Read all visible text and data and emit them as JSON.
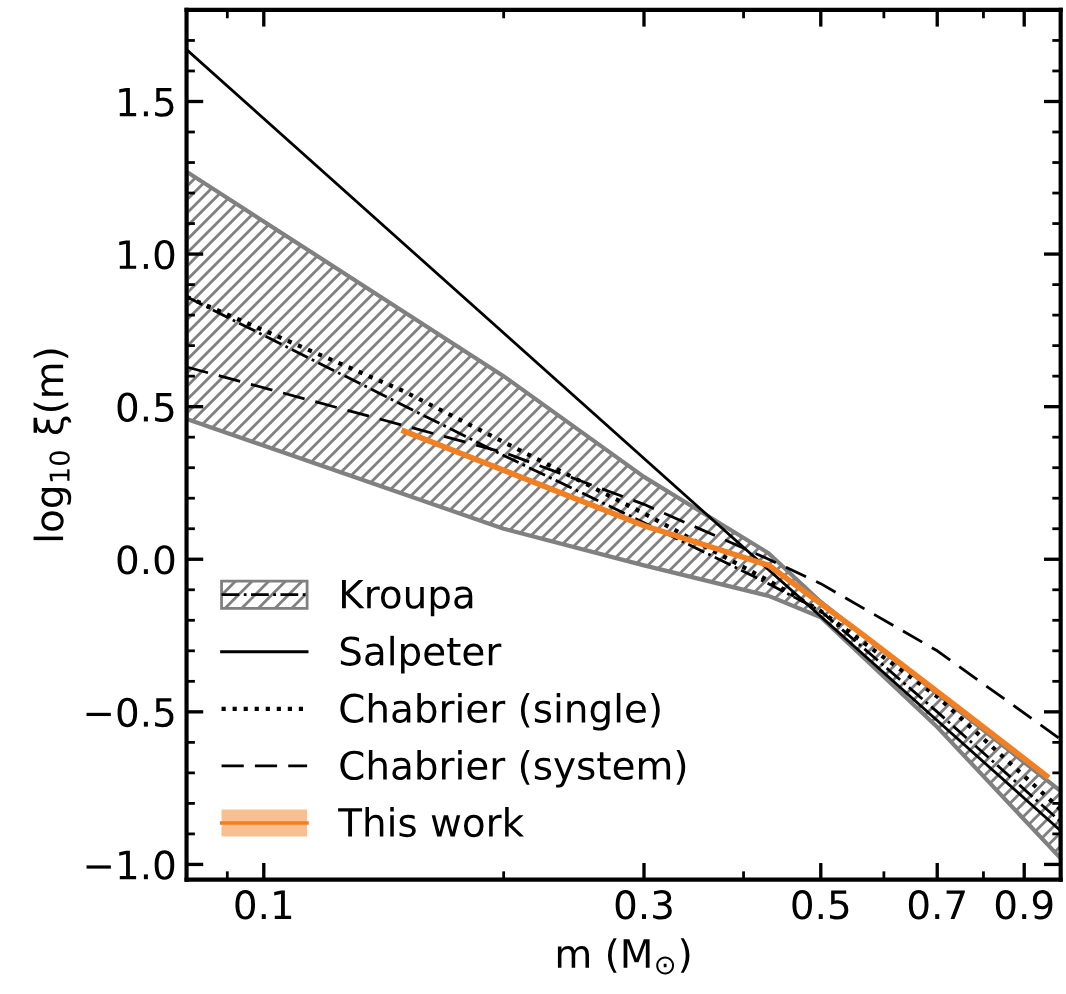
{
  "chart_data": {
    "type": "line",
    "xlabel": "m (M$_{⊙}$)",
    "ylabel": "log$_{10}$ ξ(m)",
    "log": "x",
    "xlim": [
      0.08,
      1.0
    ],
    "xticks": [
      0.1,
      0.3,
      0.5,
      0.7,
      0.9
    ],
    "ylim": [
      -1.05,
      1.8
    ],
    "yticks": [
      {
        "value": -1.0,
        "label": "−1.0"
      },
      {
        "value": -0.5,
        "label": "−0.5"
      },
      {
        "value": 0.0,
        "label": "0.0"
      },
      {
        "value": 0.5,
        "label": "0.5"
      },
      {
        "value": 1.0,
        "label": "1.0"
      },
      {
        "value": 1.5,
        "label": "1.5"
      }
    ],
    "grid": false,
    "legend": "bottom left",
    "series": [
      {
        "name": "Kroupa",
        "color": "#000000",
        "line_style": "dashdot",
        "x": [
          0.08,
          0.2,
          0.3,
          0.43,
          0.5,
          0.7,
          1.0
        ],
        "values": [
          0.86,
          0.34,
          0.12,
          -0.08,
          -0.17,
          -0.5,
          -0.86
        ],
        "lower": [
          0.46,
          0.1,
          -0.02,
          -0.12,
          -0.19,
          -0.55,
          -0.98
        ],
        "upper": [
          1.27,
          0.6,
          0.27,
          0.02,
          -0.14,
          -0.44,
          -0.76
        ]
      },
      {
        "name": "Salpeter",
        "color": "#000000",
        "line_style": "solid",
        "x": [
          0.08,
          1.0
        ],
        "values": [
          1.67,
          -0.89
        ]
      },
      {
        "name": "Chabrier (single)",
        "color": "#000000",
        "line_style": "dotted",
        "x": [
          0.08,
          0.15,
          0.3,
          0.43,
          0.5,
          0.7,
          1.0
        ],
        "values": [
          0.86,
          0.55,
          0.15,
          -0.07,
          -0.17,
          -0.45,
          -0.82
        ]
      },
      {
        "name": "Chabrier (system)",
        "color": "#000000",
        "line_style": "dashed",
        "x": [
          0.08,
          0.2,
          0.3,
          0.43,
          0.5,
          0.7,
          1.0
        ],
        "values": [
          0.63,
          0.35,
          0.18,
          0.0,
          -0.08,
          -0.3,
          -0.59
        ]
      },
      {
        "name": "This work",
        "color": "#f28022",
        "line_style": "solid",
        "x": [
          0.15,
          0.3,
          0.43,
          0.56,
          0.73,
          0.96
        ],
        "values": [
          0.42,
          0.11,
          -0.02,
          -0.24,
          -0.47,
          -0.71
        ]
      }
    ]
  }
}
